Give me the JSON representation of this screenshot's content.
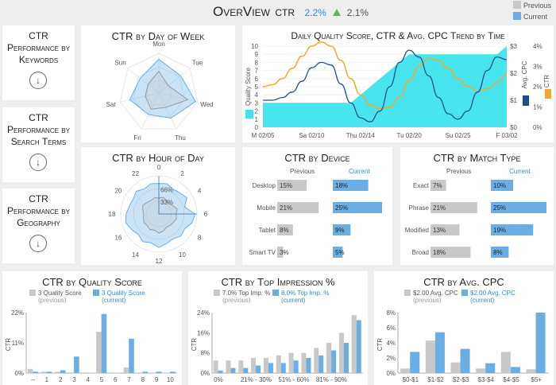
{
  "header": {
    "title": "OverView",
    "subtitle": "CTR",
    "current_value": "2.2%",
    "previous_value": "2.1%",
    "trend": "up"
  },
  "legend": {
    "previous": "Previous",
    "current": "Current"
  },
  "colors": {
    "previous": "#c8c8c8",
    "current": "#6aaee4",
    "current_text": "#2f8fd6",
    "cyan": "#3ee4ee",
    "orange": "#f2a92b",
    "navy": "#1d4f8f",
    "trend_up": "#5bb85b"
  },
  "nav": [
    {
      "label": "CTR Performance by Keywords",
      "icon": "arrow-down-circle-icon"
    },
    {
      "label": "CTR Performance by Search Terms",
      "icon": "arrow-down-circle-icon"
    },
    {
      "label": "CTR Performance by Geography",
      "icon": "arrow-down-circle-icon"
    }
  ],
  "day_of_week": {
    "title": "CTR by Day of Week",
    "type": "radar",
    "categories": [
      "Mon",
      "Tue",
      "Wed",
      "Thu",
      "Fri",
      "Sat",
      "Sun"
    ],
    "series": [
      {
        "name": "Previous",
        "values": [
          0.55,
          0.3,
          0.75,
          0.4,
          0.45,
          0.35,
          0.35
        ]
      },
      {
        "name": "Current",
        "values": [
          0.85,
          0.7,
          0.95,
          0.7,
          0.6,
          0.75,
          0.6
        ]
      }
    ]
  },
  "hour_of_day": {
    "title": "CTR by Hour of Day",
    "type": "radar",
    "tick_labels": [
      "0",
      "2",
      "4",
      "6",
      "8",
      "10",
      "12",
      "14",
      "16",
      "18",
      "20",
      "22"
    ],
    "rings": [
      "66%",
      "33%"
    ],
    "series": [
      {
        "name": "Previous",
        "values": [
          0.42,
          0.45,
          0.4,
          0.38,
          0.43,
          0.5,
          0.45,
          0.48,
          0.44,
          0.42,
          0.4,
          0.46,
          0.5,
          0.44,
          0.47,
          0.43,
          0.45,
          0.42,
          0.4,
          0.44,
          0.48,
          0.43,
          0.41,
          0.44
        ]
      },
      {
        "name": "Current",
        "values": [
          0.8,
          0.82,
          0.75,
          0.78,
          0.85,
          0.7,
          0.95,
          0.9,
          0.78,
          0.82,
          0.75,
          0.8,
          0.88,
          0.78,
          0.84,
          0.76,
          0.82,
          0.9,
          0.86,
          0.8,
          0.78,
          0.84,
          0.76,
          0.82
        ]
      }
    ]
  },
  "trend": {
    "title": "Daily Quality Score, CTR & Avg. CPC Trend by Time",
    "x_labels": [
      "M 02/05",
      "Sa 02/10",
      "Thu 02/14",
      "Tu 02/20",
      "Su 02/25",
      "F 03/02"
    ],
    "y_left": {
      "label": "Quality Score",
      "ticks": [
        "0",
        "1",
        "2",
        "3",
        "4",
        "5",
        "6",
        "7",
        "8",
        "9",
        "10"
      ]
    },
    "y_mid": {
      "label": "Avg. CPC",
      "ticks": [
        "$0",
        "$1",
        "$2",
        "$3"
      ]
    },
    "y_right": {
      "label": "CTR",
      "ticks": [
        "0%",
        "1%",
        "2%",
        "3%",
        "4%"
      ]
    },
    "quality_score": [
      3,
      3,
      3,
      3,
      3,
      3,
      3,
      3,
      3,
      3,
      4,
      5,
      6,
      7,
      8,
      9,
      9,
      9,
      9,
      9,
      9,
      9,
      9,
      9,
      9,
      10
    ],
    "avg_cpc": [
      1.0,
      1.0,
      1.1,
      1.3,
      1.7,
      2.2,
      2.4,
      2.3,
      1.6,
      0.9,
      0.35,
      0.2,
      0.6,
      1.5,
      2.4,
      2.85,
      2.6,
      1.9,
      1.1,
      0.5,
      0.3,
      0.6,
      1.3,
      2.1,
      2.6,
      2.5
    ],
    "ctr": [
      2.0,
      2.1,
      2.4,
      2.9,
      3.5,
      4.0,
      4.2,
      4.0,
      3.3,
      2.4,
      1.6,
      1.1,
      0.9,
      1.0,
      1.5,
      2.3,
      3.0,
      3.4,
      3.3,
      2.9,
      2.4,
      2.0,
      1.8,
      1.9,
      2.2,
      2.6
    ]
  },
  "device": {
    "title": "CTR by Device",
    "col_previous": "Previous",
    "col_current": "Current",
    "rows": [
      {
        "label": "Desktop",
        "previous": 15,
        "current": 18,
        "previous_label": "15%",
        "current_label": "18%"
      },
      {
        "label": "Mobile",
        "previous": 21,
        "current": 25,
        "previous_label": "21%",
        "current_label": "25%"
      },
      {
        "label": "Tablet",
        "previous": 8,
        "current": 9,
        "previous_label": "8%",
        "current_label": "9%"
      },
      {
        "label": "Smart TV",
        "previous": 3,
        "current": 5,
        "previous_label": "3%",
        "current_label": "5%"
      }
    ]
  },
  "match_type": {
    "title": "CTR by Match Type",
    "col_previous": "Previous",
    "col_current": "Current",
    "rows": [
      {
        "label": "Exact",
        "previous": 7,
        "current": 10,
        "previous_label": "7%",
        "current_label": "10%"
      },
      {
        "label": "Phrase",
        "previous": 21,
        "current": 25,
        "previous_label": "21%",
        "current_label": "25%"
      },
      {
        "label": "Modified",
        "previous": 13,
        "current": 19,
        "previous_label": "13%",
        "current_label": "19%"
      },
      {
        "label": "Broad",
        "previous": 18,
        "current": 8,
        "previous_label": "18%",
        "current_label": "8%"
      }
    ]
  },
  "quality_score": {
    "title": "CTR by Quality Score",
    "legend_previous": "3 Quality Score",
    "legend_previous_sub": "(previous)",
    "legend_current": "3 Quality Score",
    "legend_current_sub": "(current)",
    "ylabel": "CTR",
    "yticks": [
      "0%",
      "11%",
      "22%"
    ],
    "ymax": 22,
    "categories": [
      "--",
      "1",
      "2",
      "3",
      "4",
      "5",
      "6",
      "7",
      "8",
      "9",
      "10"
    ],
    "previous": [
      1.5,
      0.5,
      0.5,
      0,
      0,
      15,
      0,
      2,
      0,
      0,
      0
    ],
    "current": [
      0.5,
      0.5,
      1,
      6,
      0,
      21.5,
      0,
      12.5,
      0.5,
      0.5,
      0.5
    ]
  },
  "impression": {
    "title": "CTR by Top Impression %",
    "legend_previous": "7.0% Top Imp. %",
    "legend_previous_sub": "(previous)",
    "legend_current": "8.0% Top Imp. %",
    "legend_current_sub": "(current)",
    "ylabel": "CTR",
    "yticks": [
      "0%",
      "8%",
      "16%",
      "24%"
    ],
    "ymax": 24,
    "tick_labels": [
      "0%",
      "21% - 30%",
      "51% - 60%",
      "81% - 90%"
    ],
    "previous": [
      5,
      5,
      5,
      6,
      6,
      7,
      8,
      8,
      10,
      12,
      16,
      23
    ],
    "current": [
      1,
      2,
      2,
      3,
      4,
      4,
      5,
      6,
      7,
      9,
      12,
      21
    ]
  },
  "avg_cpc": {
    "title": "CTR by Avg. CPC",
    "legend_previous": "$2.00 Avg. CPC",
    "legend_previous_sub": "(previous)",
    "legend_current": "$2.00 Avg. CPC",
    "legend_current_sub": "(current)",
    "ylabel": "CTR",
    "yticks": [
      "0%",
      "2%",
      "4%",
      "6%",
      "8%"
    ],
    "ymax": 8,
    "categories": [
      "$0-$1",
      "$1-$2",
      "$2-$3",
      "$3-$4",
      "$4-$5",
      "$5+"
    ],
    "previous": [
      0.6,
      4.3,
      1.4,
      0.6,
      2.8,
      0.5
    ],
    "current": [
      2.8,
      5.4,
      3.2,
      1.3,
      0.8,
      8.0
    ]
  }
}
